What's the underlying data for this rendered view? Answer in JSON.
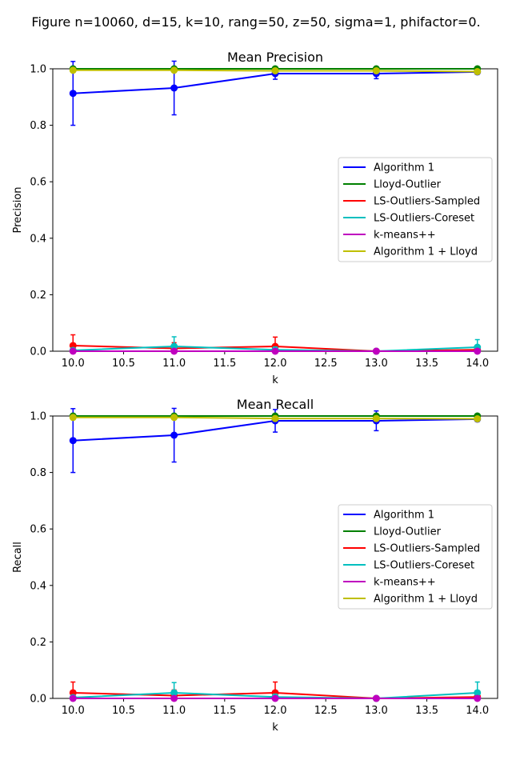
{
  "figure": {
    "suptitle": "Figure n=10060, d=15, k=10, rang=50, z=50, sigma=1, phifactor=0."
  },
  "chart_data": [
    {
      "type": "line",
      "title": "Mean Precision",
      "xlabel": "k",
      "ylabel": "Precision",
      "xlim": [
        9.8,
        14.2
      ],
      "ylim": [
        0.0,
        1.0
      ],
      "xticks": [
        "10.0",
        "10.5",
        "11.0",
        "11.5",
        "12.0",
        "12.5",
        "13.0",
        "13.5",
        "14.0"
      ],
      "yticks": [
        "0.0",
        "0.2",
        "0.4",
        "0.6",
        "0.8",
        "1.0"
      ],
      "legend_position": "center-right",
      "grid": false,
      "x": [
        10,
        11,
        12,
        13,
        14
      ],
      "series": [
        {
          "name": "Algorithm 1",
          "color": "#0000ff",
          "values": [
            0.913,
            0.932,
            0.983,
            0.983,
            0.989
          ],
          "err": [
            0.113,
            0.095,
            0.02,
            0.018,
            0.008
          ]
        },
        {
          "name": "Lloyd-Outlier",
          "color": "#008000",
          "values": [
            1.0,
            1.0,
            1.0,
            1.0,
            1.0
          ],
          "err": [
            0,
            0,
            0,
            0,
            0
          ]
        },
        {
          "name": "LS-Outliers-Sampled",
          "color": "#ff0000",
          "values": [
            0.02,
            0.01,
            0.017,
            0.0,
            0.005
          ],
          "err": [
            0.038,
            0.02,
            0.033,
            0.0,
            0.01
          ]
        },
        {
          "name": "LS-Outliers-Coreset",
          "color": "#00bfbf",
          "values": [
            0.003,
            0.017,
            0.005,
            0.0,
            0.014
          ],
          "err": [
            0.006,
            0.034,
            0.01,
            0.0,
            0.027
          ]
        },
        {
          "name": "k-means++",
          "color": "#bf00bf",
          "values": [
            0.0,
            0.0,
            0.0,
            0.0,
            0.0
          ],
          "err": [
            0,
            0,
            0,
            0,
            0
          ]
        },
        {
          "name": "Algorithm 1 + Lloyd",
          "color": "#bfbf00",
          "values": [
            0.995,
            0.995,
            0.993,
            0.993,
            0.99
          ],
          "err": [
            0.004,
            0.004,
            0.004,
            0.004,
            0.004
          ]
        }
      ]
    },
    {
      "type": "line",
      "title": "Mean Recall",
      "xlabel": "k",
      "ylabel": "Recall",
      "xlim": [
        9.8,
        14.2
      ],
      "ylim": [
        0.0,
        1.0
      ],
      "xticks": [
        "10.0",
        "10.5",
        "11.0",
        "11.5",
        "12.0",
        "12.5",
        "13.0",
        "13.5",
        "14.0"
      ],
      "yticks": [
        "0.0",
        "0.2",
        "0.4",
        "0.6",
        "0.8",
        "1.0"
      ],
      "legend_position": "center-right",
      "grid": false,
      "x": [
        10,
        11,
        12,
        13,
        14
      ],
      "series": [
        {
          "name": "Algorithm 1",
          "color": "#0000ff",
          "values": [
            0.913,
            0.932,
            0.983,
            0.983,
            0.989
          ],
          "err": [
            0.113,
            0.095,
            0.04,
            0.035,
            0.008
          ]
        },
        {
          "name": "Lloyd-Outlier",
          "color": "#008000",
          "values": [
            1.0,
            1.0,
            1.0,
            1.0,
            1.0
          ],
          "err": [
            0,
            0,
            0,
            0,
            0
          ]
        },
        {
          "name": "LS-Outliers-Sampled",
          "color": "#ff0000",
          "values": [
            0.02,
            0.01,
            0.02,
            0.0,
            0.005
          ],
          "err": [
            0.038,
            0.02,
            0.038,
            0.0,
            0.01
          ]
        },
        {
          "name": "LS-Outliers-Coreset",
          "color": "#00bfbf",
          "values": [
            0.003,
            0.02,
            0.005,
            0.0,
            0.02
          ],
          "err": [
            0.006,
            0.036,
            0.01,
            0.0,
            0.038
          ]
        },
        {
          "name": "k-means++",
          "color": "#bf00bf",
          "values": [
            0.0,
            0.0,
            0.0,
            0.0,
            0.0
          ],
          "err": [
            0,
            0,
            0,
            0,
            0
          ]
        },
        {
          "name": "Algorithm 1 + Lloyd",
          "color": "#bfbf00",
          "values": [
            0.995,
            0.995,
            0.991,
            0.991,
            0.99
          ],
          "err": [
            0.004,
            0.004,
            0.006,
            0.006,
            0.004
          ]
        }
      ]
    }
  ]
}
